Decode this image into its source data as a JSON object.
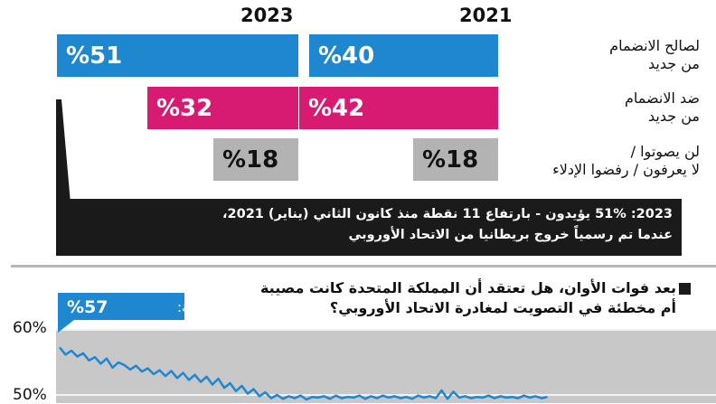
{
  "chart_data": [
    {
      "type": "bar",
      "orientation": "horizontal",
      "groups": [
        "2023",
        "2021"
      ],
      "categories": [
        {
          "label_line1": "لصالح الانضمام",
          "label_line2": "من جديد",
          "color": "#1f87d0"
        },
        {
          "label_line1": "ضد الانضمام",
          "label_line2": "من جديد",
          "color": "#d81b72"
        },
        {
          "label_line1": "لن يصوتوا /",
          "label_line2": "لا يعرفون / رفضوا الإدلاء",
          "color": "#b3b3b3"
        }
      ],
      "series": [
        {
          "name": "2023",
          "values": [
            51,
            32,
            18
          ],
          "labels": [
            "%51",
            "%32",
            "%18"
          ]
        },
        {
          "name": "2021",
          "values": [
            40,
            42,
            18
          ],
          "labels": [
            "%40",
            "%42",
            "%18"
          ]
        }
      ],
      "note_line1": "2023: 51% يؤيدون - بارتفاع 11 نقطة منذ كانون الثاني (يناير) 2021،",
      "note_line2": "عندما تم رسمياً خروج بريطانيا من الاتحاد الأوروبي"
    },
    {
      "type": "line",
      "question_line1": "بعد فوات الأوان، هل تعتقد أن المملكة المتحدة كانت مصيبة",
      "question_line2": "أم مخطئة في التصويت لمغادرة الاتحاد الأوروبي؟",
      "y_ticks": [
        "60%",
        "50%"
      ],
      "ylim": [
        47,
        62
      ],
      "callout_label": "مصيبة:",
      "callout_value": "%57",
      "series_color": "#1f87d0",
      "values": [
        57.3,
        56.2,
        56.8,
        55.9,
        56.4,
        55.3,
        55.8,
        54.8,
        55.6,
        54.2,
        55.0,
        54.6,
        53.9,
        54.5,
        53.6,
        54.1,
        53.2,
        53.8,
        52.9,
        53.7,
        52.6,
        53.4,
        52.3,
        53.1,
        52.0,
        52.8,
        51.6,
        52.5,
        51.1,
        51.8,
        50.6,
        51.4,
        50.2,
        50.9,
        49.8,
        50.4,
        49.5,
        50.0,
        49.4,
        49.8,
        49.5,
        49.9,
        49.3,
        49.7,
        49.6,
        49.8,
        49.4,
        49.9,
        49.5,
        49.7,
        49.6,
        49.9,
        49.4,
        49.8,
        49.5,
        49.9,
        49.6,
        49.8,
        49.5,
        49.7,
        49.4,
        49.9,
        49.6,
        49.8,
        49.5,
        50.7,
        49.4,
        50.5,
        49.6,
        49.8,
        49.5,
        49.7,
        49.6,
        49.9,
        49.5,
        49.8,
        49.6,
        49.7,
        49.5,
        49.9,
        49.6,
        49.8,
        49.5,
        49.7
      ]
    }
  ]
}
